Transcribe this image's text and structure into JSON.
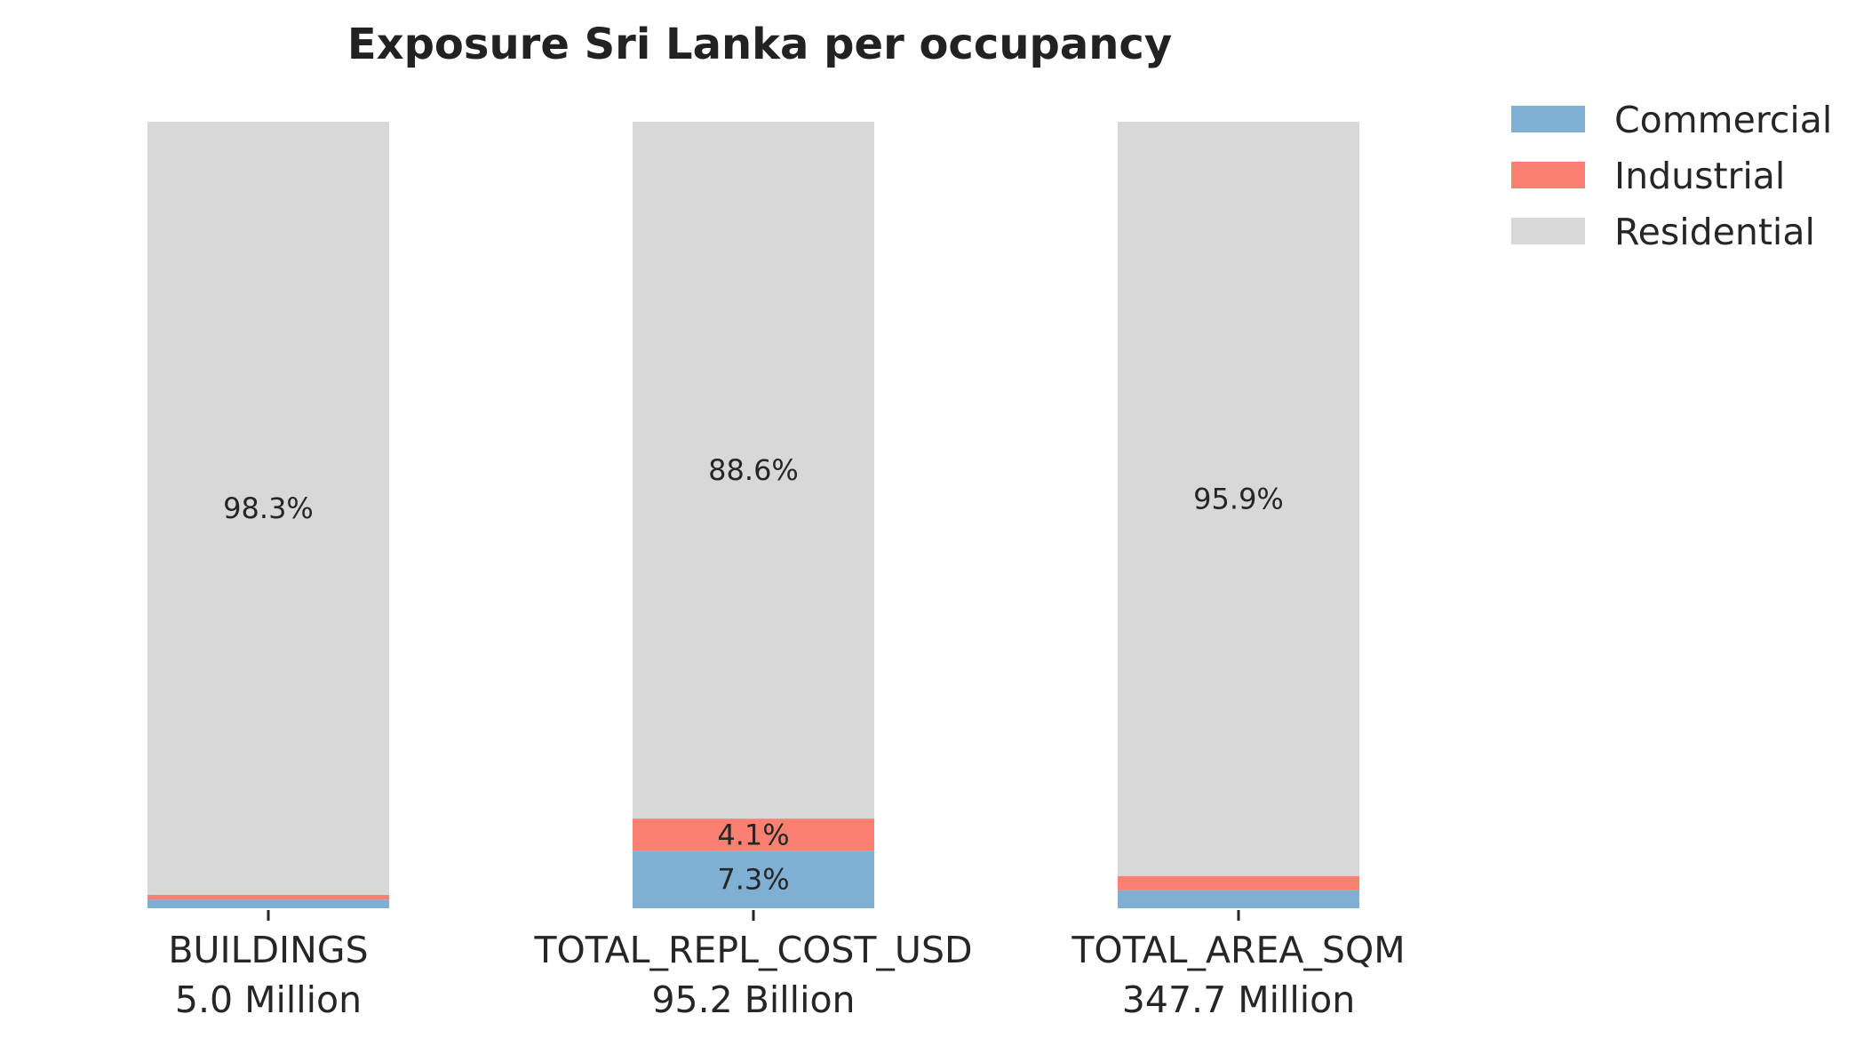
{
  "chart_data": {
    "type": "bar",
    "stacked": true,
    "percent_stacked": true,
    "title": "Exposure Sri Lanka per occupancy",
    "xlabel": "",
    "ylabel": "",
    "ylim": [
      0,
      100
    ],
    "grid": false,
    "legend_position": "top-right",
    "categories": [
      "BUILDINGS",
      "TOTAL_REPL_COST_USD",
      "TOTAL_AREA_SQM"
    ],
    "category_totals": [
      "5.0 Million",
      "95.2 Billion",
      "347.7 Million"
    ],
    "series": [
      {
        "name": "Commercial",
        "color": "#7fb0d4",
        "values": [
          1.1,
          7.3,
          2.3
        ],
        "labels": [
          "",
          "7.3%",
          ""
        ]
      },
      {
        "name": "Industrial",
        "color": "#fa8072",
        "values": [
          0.6,
          4.1,
          1.8
        ],
        "labels": [
          "",
          "4.1%",
          ""
        ]
      },
      {
        "name": "Residential",
        "color": "#d8d8d8",
        "values": [
          98.3,
          88.6,
          95.9
        ],
        "labels": [
          "98.3%",
          "88.6%",
          "95.9%"
        ]
      }
    ]
  }
}
